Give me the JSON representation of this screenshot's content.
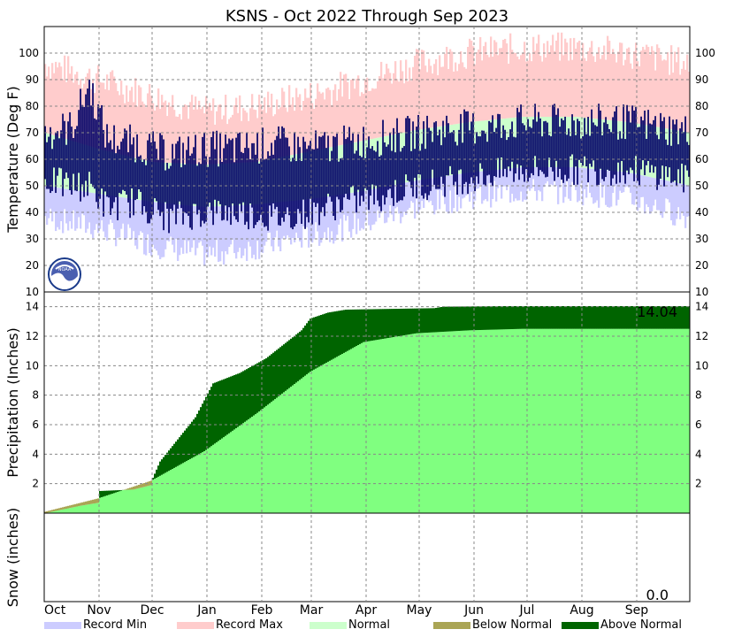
{
  "chart_data": {
    "type": "area",
    "title": "KSNS - Oct 2022 Through Sep 2023",
    "months": [
      "Oct",
      "Nov",
      "Dec",
      "Jan",
      "Feb",
      "Mar",
      "Apr",
      "May",
      "Jun",
      "Jul",
      "Aug",
      "Sep"
    ],
    "legend": [
      {
        "label": "Record Min",
        "color": "#ccccff"
      },
      {
        "label": "Record Max",
        "color": "#ffcccc"
      },
      {
        "label": "Normal",
        "color": "#ccffcc"
      },
      {
        "label": "Below Normal",
        "color": "#aaa555"
      },
      {
        "label": "Above Normal",
        "color": "#006400"
      }
    ],
    "temperature": {
      "ylabel": "Temperature (Deg F)",
      "ylim": [
        10,
        110
      ],
      "ticks": [
        10,
        20,
        30,
        40,
        50,
        60,
        70,
        80,
        90,
        100
      ],
      "record_max": {
        "name": "Record Max",
        "x": [
          0,
          30,
          60,
          90,
          120,
          150,
          180,
          210,
          240,
          270,
          300,
          330,
          365
        ],
        "y": [
          96,
          90,
          84,
          78,
          80,
          84,
          90,
          96,
          100,
          102,
          102,
          100,
          96
        ]
      },
      "normal_high": {
        "name": "Normal",
        "x": [
          0,
          30,
          60,
          90,
          120,
          150,
          180,
          210,
          240,
          270,
          300,
          330,
          365
        ],
        "y": [
          70,
          64,
          59,
          58,
          59,
          63,
          67,
          71,
          74,
          76,
          76,
          74,
          70
        ]
      },
      "normal_low": {
        "name": "Normal",
        "x": [
          0,
          30,
          60,
          90,
          120,
          150,
          180,
          210,
          240,
          270,
          300,
          330,
          365
        ],
        "y": [
          50,
          47,
          44,
          42,
          43,
          45,
          48,
          52,
          55,
          57,
          57,
          55,
          50
        ]
      },
      "record_min": {
        "name": "Record Min",
        "x": [
          0,
          30,
          60,
          90,
          120,
          150,
          180,
          210,
          240,
          270,
          300,
          330,
          365
        ],
        "y": [
          38,
          34,
          28,
          24,
          27,
          31,
          36,
          42,
          46,
          48,
          48,
          45,
          38
        ]
      },
      "observed_high": {
        "x": [
          0,
          15,
          25,
          35,
          50,
          70,
          90,
          110,
          130,
          150,
          170,
          190,
          210,
          230,
          250,
          270,
          290,
          310,
          330,
          350,
          365
        ],
        "y": [
          70,
          72,
          88,
          68,
          66,
          62,
          64,
          64,
          66,
          64,
          66,
          68,
          70,
          72,
          72,
          74,
          74,
          74,
          74,
          72,
          70
        ]
      },
      "observed_low": {
        "x": [
          0,
          15,
          25,
          35,
          50,
          70,
          90,
          110,
          130,
          150,
          170,
          190,
          210,
          230,
          250,
          270,
          290,
          310,
          330,
          350,
          365
        ],
        "y": [
          52,
          50,
          50,
          42,
          44,
          38,
          40,
          40,
          38,
          40,
          44,
          46,
          50,
          52,
          54,
          56,
          56,
          56,
          56,
          54,
          52
        ]
      }
    },
    "precipitation": {
      "ylabel": "Precipitation (Inches)",
      "ylim": [
        0,
        15
      ],
      "ticks": [
        2,
        4,
        6,
        8,
        10,
        12,
        14
      ],
      "total_label": "14.04",
      "normal": {
        "name": "Normal",
        "x": [
          0,
          30,
          60,
          90,
          120,
          150,
          180,
          210,
          240,
          270,
          300,
          330,
          365
        ],
        "y": [
          0.1,
          1.0,
          2.2,
          4.2,
          6.8,
          9.6,
          11.6,
          12.2,
          12.4,
          12.5,
          12.5,
          12.5,
          12.5
        ]
      },
      "observed": {
        "x": [
          0,
          20,
          30,
          31,
          50,
          60,
          61,
          65,
          85,
          95,
          110,
          125,
          145,
          150,
          160,
          170,
          220,
          225,
          260,
          365
        ],
        "y": [
          0.0,
          0.5,
          0.7,
          1.5,
          1.6,
          1.9,
          2.4,
          3.5,
          6.5,
          8.8,
          9.5,
          10.5,
          12.4,
          13.2,
          13.6,
          13.8,
          13.9,
          14.0,
          14.04,
          14.04
        ]
      }
    },
    "snow": {
      "ylabel": "Snow (inches)",
      "total_label": "0.0"
    }
  }
}
